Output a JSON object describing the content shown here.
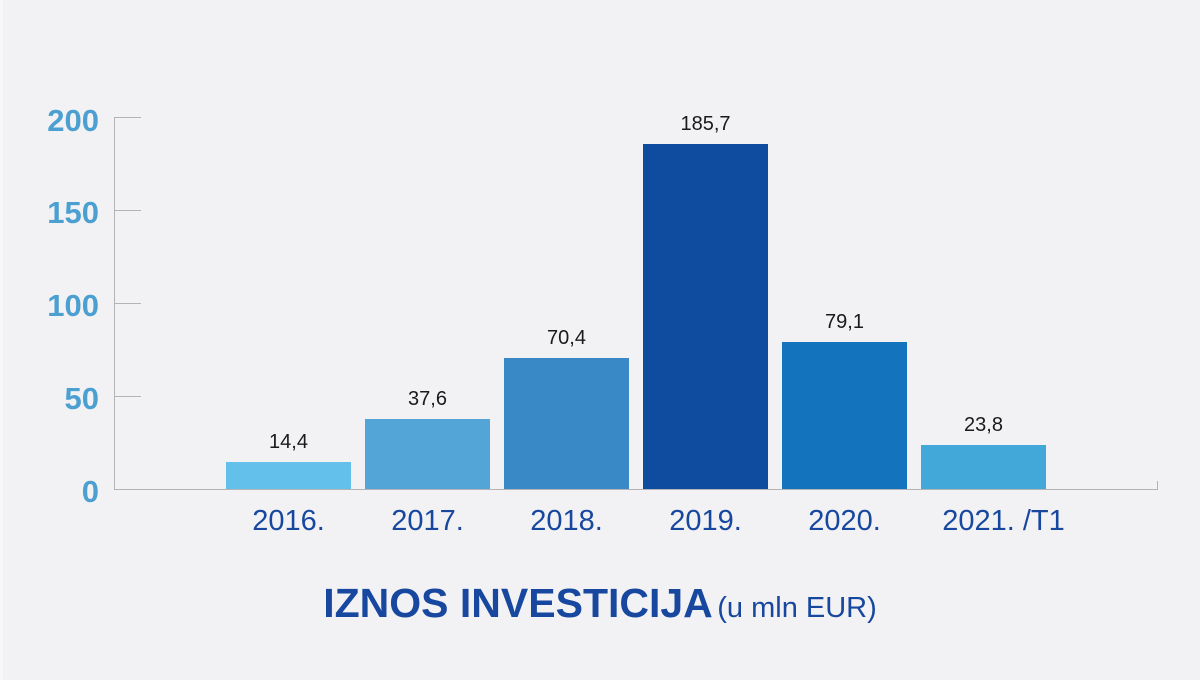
{
  "chart_data": {
    "type": "bar",
    "title": "IZNOS INVESTICIJA",
    "subtitle": "(u mln EUR)",
    "xlabel": "",
    "ylabel": "",
    "categories": [
      "2016.",
      "2017.",
      "2018.",
      "2019.",
      "2020.",
      "2021. /T1"
    ],
    "values": [
      14.4,
      37.6,
      70.4,
      185.7,
      79.1,
      23.8
    ],
    "value_labels": [
      "14,4",
      "37,6",
      "70,4",
      "185,7",
      "79,1",
      "23,8"
    ],
    "bar_colors": [
      "#62c0eb",
      "#52a5d6",
      "#3889c5",
      "#0f4c9f",
      "#1373bc",
      "#42a8d9"
    ],
    "yticks": [
      "0",
      "50",
      "100",
      "150",
      "200"
    ],
    "ylim": [
      0,
      200
    ],
    "grid": false,
    "legend": null
  },
  "colors": {
    "background": "#f2f2f4",
    "axis": "#b4b4b8",
    "ytick_label": "#4b9fd1",
    "xtick_label": "#17479e",
    "title": "#17479e",
    "value_label": "#1a1a1a"
  }
}
